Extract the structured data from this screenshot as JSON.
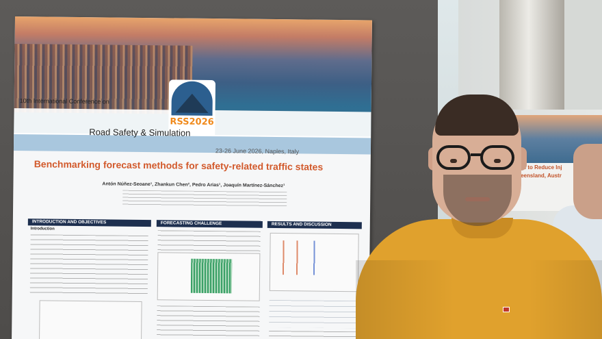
{
  "poster": {
    "conference_line": "10th International Conference on",
    "logo_text": "RSS2026",
    "subtitle": "Road Safety & Simulation",
    "dates": "23-26 June 2026, Naples, Italy",
    "title": "Benchmarking forecast methods for safety-related traffic states",
    "authors": "Antón Núñez-Seoane¹, Zhankun Chen², Pedro Arias¹, Joaquín Martínez-Sánchez¹",
    "sections": [
      "INTRODUCTION AND OBJECTIVES",
      "FORECASTING CHALLENGE",
      "RESULTS AND DISCUSSION"
    ],
    "intro_heading": "Introduction"
  },
  "background_poster": {
    "line1": "eCall to Reduce Inj",
    "line2": "Queensland, Austr"
  }
}
